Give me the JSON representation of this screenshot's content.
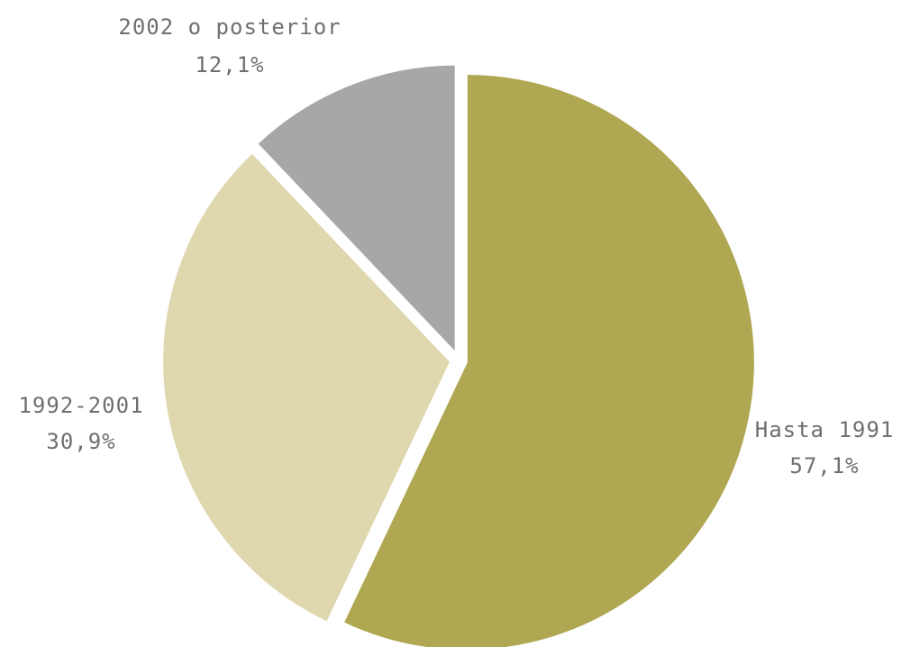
{
  "chart_data": {
    "type": "pie",
    "slices": [
      {
        "label": "Hasta 1991",
        "value": 57.1,
        "value_label": "57,1%",
        "color": "#b0a752"
      },
      {
        "label": "1992-2001",
        "value": 30.9,
        "value_label": "30,9%",
        "color": "#dfd7ae"
      },
      {
        "label": "2002 o posterior",
        "value": 12.1,
        "value_label": "12,1%",
        "color": "#a5a7a9"
      }
    ],
    "start_angle": "12 o'clock",
    "direction": "clockwise",
    "exploded": true,
    "legend": "none",
    "label_color": "#6f6f6f"
  }
}
